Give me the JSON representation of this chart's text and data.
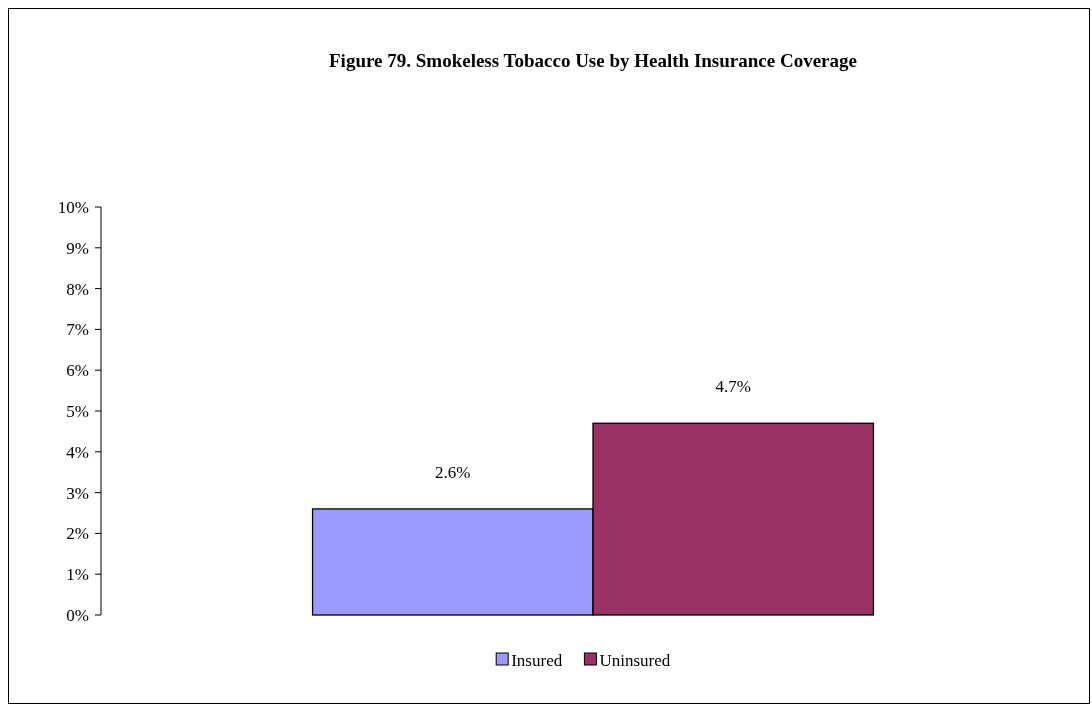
{
  "chart_data": {
    "type": "bar",
    "title": "Figure 79. Smokeless Tobacco Use by Health Insurance Coverage",
    "categories": [
      null
    ],
    "series": [
      {
        "name": "Insured",
        "color": "#9999ff",
        "values": [
          2.6
        ]
      },
      {
        "name": "Uninsured",
        "color": "#993366",
        "values": [
          4.7
        ]
      }
    ],
    "ylim": [
      0,
      10
    ],
    "yticks": [
      {
        "value": 0,
        "label": "0%"
      },
      {
        "value": 1,
        "label": "1%"
      },
      {
        "value": 2,
        "label": "2%"
      },
      {
        "value": 3,
        "label": "3%"
      },
      {
        "value": 4,
        "label": "4%"
      },
      {
        "value": 5,
        "label": "5%"
      },
      {
        "value": 6,
        "label": "6%"
      },
      {
        "value": 7,
        "label": "7%"
      },
      {
        "value": 8,
        "label": "8%"
      },
      {
        "value": 9,
        "label": "9%"
      },
      {
        "value": 10,
        "label": "10%"
      }
    ],
    "value_labels": [
      [
        "2.6%"
      ],
      [
        "4.7%"
      ]
    ],
    "grid": false,
    "legend": "bottom"
  }
}
